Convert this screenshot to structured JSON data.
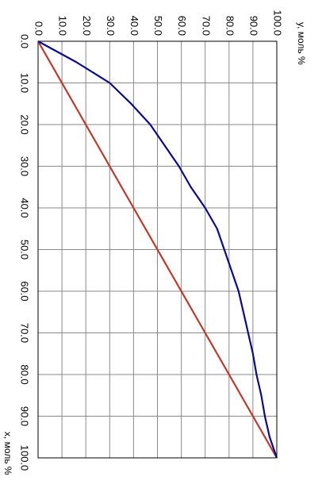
{
  "chart_data": {
    "type": "line",
    "xlabel": "x, моль %",
    "ylabel": "y, моль %",
    "xlim": [
      0,
      100
    ],
    "ylim": [
      0,
      100
    ],
    "x_ticks": [
      "0.0",
      "10.0",
      "20.0",
      "30.0",
      "40.0",
      "50.0",
      "60.0",
      "70.0",
      "80.0",
      "90.0",
      "100.0"
    ],
    "y_ticks": [
      "0.0",
      "10.0",
      "20.0",
      "30.0",
      "40.0",
      "50.0",
      "60.0",
      "70.0",
      "80.0",
      "90.0",
      "100.0"
    ],
    "grid": true,
    "rotation": "rotated 90° clockwise",
    "series": [
      {
        "color": "#0a0a8c",
        "x": [
          0,
          5,
          10,
          15,
          20,
          25,
          30,
          35,
          40,
          45,
          50,
          55,
          60,
          65,
          70,
          75,
          80,
          85,
          90,
          95,
          100
        ],
        "y": [
          0,
          16,
          30,
          39,
          47,
          53,
          59,
          64,
          70,
          75,
          78,
          81,
          84,
          86,
          88,
          90,
          91.5,
          93.5,
          95,
          97,
          100
        ]
      },
      {
        "color": "#c0392b",
        "x": [
          0,
          100
        ],
        "y": [
          0,
          100
        ]
      }
    ]
  }
}
